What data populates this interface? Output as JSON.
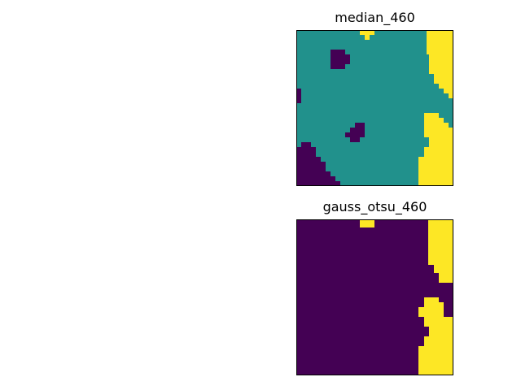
{
  "figure": {
    "panels": [
      {
        "title": "median_460"
      },
      {
        "title": "gauss_otsu_460"
      }
    ]
  },
  "colors": {
    "dark_purple": "#440154",
    "teal": "#21918c",
    "yellow": "#fde725",
    "frame": "#000000"
  }
}
